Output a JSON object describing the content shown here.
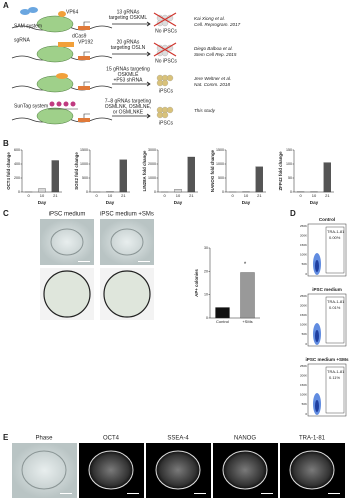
{
  "panel_a": {
    "label": "A",
    "rows": [
      {
        "system": "SAM system",
        "parts": [
          "VP64",
          "dCas9"
        ],
        "grnas": [
          "13 gRNAs",
          "targeting OSKML"
        ],
        "result": "No iPSCs",
        "citation": [
          "Kai Xiong et al.",
          "Cell. Reprogram. 2017"
        ]
      },
      {
        "system": "sgRNA",
        "parts": [
          "VP192"
        ],
        "grnas": [
          "20 gRNAs",
          "targeting OSLN"
        ],
        "result": "No iPSCs",
        "citation": [
          "Diego Balboa et al.",
          "Stem Cell Rep. 2015"
        ]
      },
      {
        "system": "",
        "parts": [],
        "grnas": [
          "15 gRNAs targeting",
          "OSKMLE",
          "+P53 shRNA"
        ],
        "result": "iPSCs",
        "citation": [
          "Jere Weltner et al.",
          "Nat. Comm. 2018"
        ]
      },
      {
        "system": "SunTag system",
        "parts": [],
        "grnas": [
          "7–8 gRNAs targeting",
          "OSMLNK, OSMLNE,",
          "or OSMLNKE"
        ],
        "result": "iPSCs",
        "citation": [
          "This study"
        ]
      }
    ]
  },
  "panel_b": {
    "label": "B",
    "xlabel": "Day",
    "colors": [
      "#cccccc",
      "#d9d9d9",
      "#555555"
    ],
    "charts": [
      {
        "type": "bar",
        "ylabel": "OCT4 fold change",
        "categories": [
          "0",
          "10",
          "21"
        ],
        "values": [
          1,
          50,
          450
        ],
        "ylim": [
          0,
          600
        ],
        "yticks": [
          0,
          200,
          400,
          600
        ]
      },
      {
        "type": "bar",
        "ylabel": "SOX2 fold change",
        "categories": [
          "0",
          "10",
          "21"
        ],
        "values": [
          1,
          20,
          1150
        ],
        "ylim": [
          0,
          1500
        ],
        "yticks": [
          0,
          500,
          1000,
          1500
        ]
      },
      {
        "type": "bar",
        "ylabel": "LIN28A fold change",
        "categories": [
          "0",
          "10",
          "21"
        ],
        "values": [
          1,
          200,
          2500
        ],
        "ylim": [
          0,
          3000
        ],
        "yticks": [
          0,
          1000,
          2000,
          3000
        ]
      },
      {
        "type": "bar",
        "ylabel": "NANOG fold change",
        "categories": [
          "0",
          "10",
          "21"
        ],
        "values": [
          1,
          10,
          900
        ],
        "ylim": [
          0,
          1500
        ],
        "yticks": [
          0,
          500,
          1000,
          1500
        ]
      },
      {
        "type": "bar",
        "ylabel": "ZFP42 fold change",
        "categories": [
          "0",
          "10",
          "21"
        ],
        "values": [
          1,
          1,
          105
        ],
        "ylim": [
          0,
          150
        ],
        "yticks": [
          0,
          50,
          100,
          150
        ]
      }
    ]
  },
  "panel_c": {
    "label": "C",
    "images": [
      "iPSC medium",
      "iPSC medium +SMs"
    ],
    "chart": {
      "type": "bar",
      "ylabel": "AP+ colonies",
      "categories": [
        "Control",
        "+SMs"
      ],
      "values": [
        4.5,
        19.5
      ],
      "colors": [
        "#111111",
        "#999999"
      ],
      "ylim": [
        0,
        30
      ],
      "yticks": [
        0,
        10,
        20,
        30
      ],
      "annotation": "*"
    }
  },
  "panel_d": {
    "label": "D",
    "yticks": [
      "250K",
      "200K",
      "150K",
      "100K",
      "50K",
      "0"
    ],
    "plots": [
      {
        "title": "Control",
        "gate": "TRA-1-81",
        "percent": "0.00%"
      },
      {
        "title": "iPSC medium",
        "gate": "TRA-1-81",
        "percent": "0.01%"
      },
      {
        "title": "iPSC medium +SMs",
        "gate": "TRA-1-81",
        "percent": "0.11%"
      }
    ]
  },
  "panel_e": {
    "label": "E",
    "images": [
      "Phase",
      "OCT4",
      "SSEA-4",
      "NANOG",
      "TRA-1-81"
    ]
  }
}
